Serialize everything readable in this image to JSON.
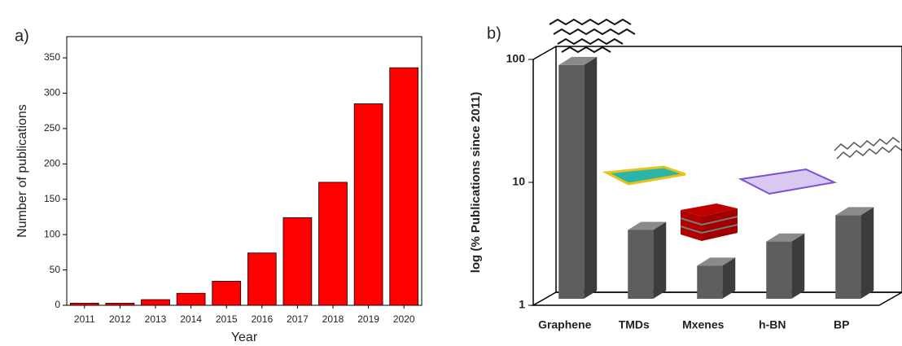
{
  "chart_data": [
    {
      "type": "bar",
      "label": "a)",
      "xlabel": "Year",
      "ylabel": "Number of publications",
      "categories": [
        "2011",
        "2012",
        "2013",
        "2014",
        "2015",
        "2016",
        "2017",
        "2018",
        "2019",
        "2020"
      ],
      "values": [
        3,
        3,
        8,
        17,
        34,
        74,
        124,
        174,
        285,
        336
      ],
      "color": "#ff0000",
      "ylim": [
        0,
        380
      ],
      "yticks": [
        0,
        50,
        100,
        150,
        200,
        250,
        300,
        350
      ]
    },
    {
      "type": "bar3d",
      "label": "b)",
      "ylabel": "log (% Publications since 2011)",
      "log_scale": true,
      "categories": [
        "Graphene",
        "TMDs",
        "Mxenes",
        "h-BN",
        "BP"
      ],
      "values": [
        90,
        4.1,
        2.1,
        3.3,
        5.4
      ],
      "color": "#5e5e5e",
      "ylim": [
        1,
        100
      ],
      "yticks": [
        1,
        10,
        100
      ]
    }
  ]
}
